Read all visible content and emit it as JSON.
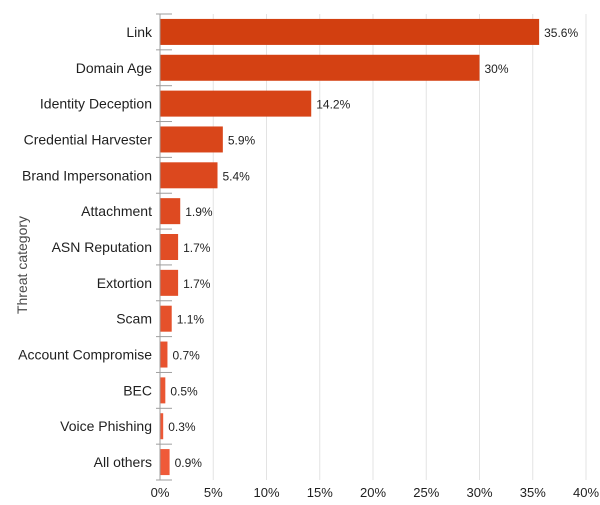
{
  "chart_data": {
    "type": "bar",
    "orientation": "horizontal",
    "ylabel": "Threat category",
    "xlabel": "",
    "xlim": [
      0,
      40
    ],
    "x_ticks": [
      "0%",
      "5%",
      "10%",
      "15%",
      "20%",
      "25%",
      "30%",
      "35%",
      "40%"
    ],
    "grid": true,
    "categories": [
      "Link",
      "Domain Age",
      "Identity Deception",
      "Credential Harvester",
      "Brand Impersonation",
      "Attachment",
      "ASN Reputation",
      "Extortion",
      "Scam",
      "Account Compromise",
      "BEC",
      "Voice Phishing",
      "All others"
    ],
    "values": [
      35.6,
      30,
      14.2,
      5.9,
      5.4,
      1.9,
      1.7,
      1.7,
      1.1,
      0.7,
      0.5,
      0.3,
      0.9
    ],
    "value_labels": [
      "35.6%",
      "30%",
      "14.2%",
      "5.9%",
      "5.4%",
      "1.9%",
      "1.7%",
      "1.7%",
      "1.1%",
      "0.7%",
      "0.5%",
      "0.3%",
      "0.9%"
    ],
    "colors": {
      "bar_dark": "#d23f10",
      "bar_light": "#ef5a39",
      "grid": "#e3e3e3",
      "axis": "#9e9e9e"
    }
  }
}
